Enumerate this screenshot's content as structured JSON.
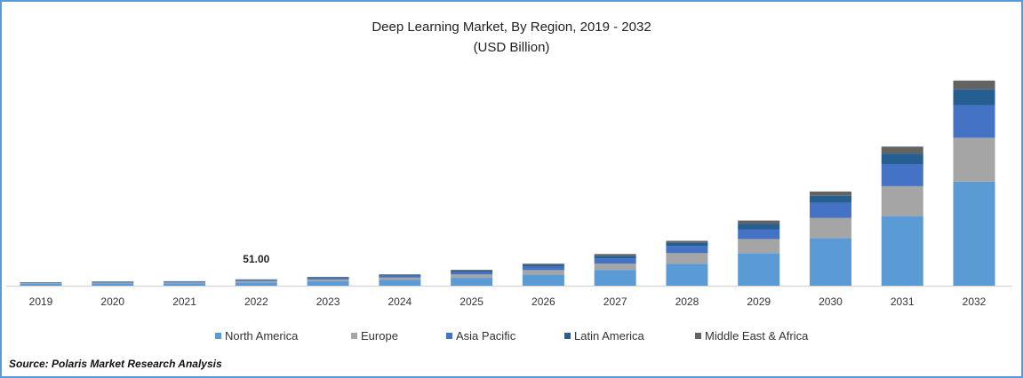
{
  "chart_data": {
    "type": "bar",
    "stacked": true,
    "title": "Deep Learning Market, By Region, 2019 - 2032",
    "subtitle": "(USD Billion)",
    "xlabel": "",
    "ylabel": "",
    "categories": [
      "2019",
      "2020",
      "2021",
      "2022",
      "2023",
      "2024",
      "2025",
      "2026",
      "2027",
      "2028",
      "2029",
      "2030",
      "2031",
      "2032"
    ],
    "series": [
      {
        "name": "North America",
        "color": "#5b9bd5",
        "values": [
          14,
          17.5,
          18,
          25.5,
          35,
          45.5,
          63,
          87.5,
          126,
          175,
          259,
          378,
          553,
          826
        ]
      },
      {
        "name": "Europe",
        "color": "#a5a5a5",
        "values": [
          6,
          7.4,
          7.6,
          10.7,
          14.7,
          19.1,
          26.5,
          36.8,
          49,
          84,
          112,
          161,
          238,
          350
        ]
      },
      {
        "name": "Asia Pacific",
        "color": "#4472c4",
        "values": [
          4.5,
          5.6,
          5.8,
          8.2,
          11.2,
          14.6,
          20.2,
          28,
          42,
          56,
          77,
          119,
          175,
          259
        ]
      },
      {
        "name": "Latin America",
        "color": "#255e91",
        "values": [
          2.2,
          2.8,
          2.9,
          4.1,
          5.6,
          7.3,
          10,
          14,
          21,
          28,
          42,
          56,
          84,
          126
        ]
      },
      {
        "name": "Middle East & Africa",
        "color": "#636363",
        "values": [
          1.3,
          1.7,
          1.7,
          2.5,
          3.5,
          4.5,
          6.3,
          8.7,
          14,
          14,
          28,
          35,
          56,
          70
        ]
      }
    ],
    "annotations": [
      {
        "category": "2022",
        "label": "51.00"
      }
    ],
    "ylim": [
      0,
      1700
    ],
    "grid": false,
    "legend": "bottom"
  },
  "source": "Source: Polaris  Market Research Analysis"
}
